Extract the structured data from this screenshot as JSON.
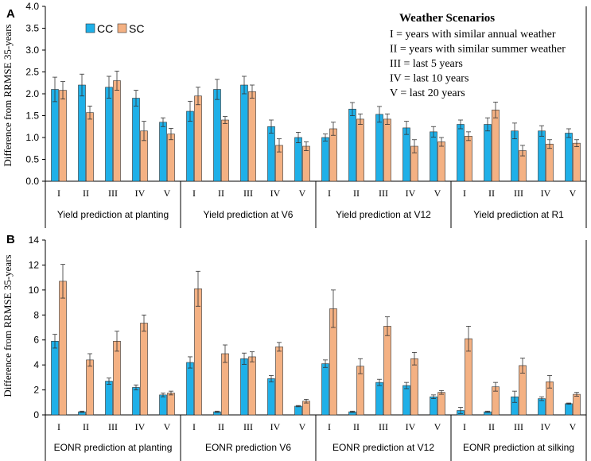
{
  "colors": {
    "cc": "#1FB0E8",
    "sc": "#F4B183",
    "axis": "#000000"
  },
  "legend": {
    "cc": "CC",
    "sc": "SC"
  },
  "weather_box": {
    "title": "Weather Scenarios",
    "lines": [
      "I   = years with similar  annual weather",
      "II =  years with similar  summer weather",
      "III = last 5 years",
      "IV = last 10 years",
      "V  =  last 20 years"
    ]
  },
  "chart_data": [
    {
      "type": "bar",
      "panel_label": "A",
      "ylabel": "Difference from RRMSE 35-years",
      "ylim": [
        0,
        4
      ],
      "yticks": [
        "0.0",
        "0.5",
        "1.0",
        "1.5",
        "2.0",
        "2.5",
        "3.0",
        "3.5",
        "4.0"
      ],
      "ytick_values": [
        0,
        0.5,
        1,
        1.5,
        2,
        2.5,
        3,
        3.5,
        4
      ],
      "scenarios": [
        "I",
        "II",
        "III",
        "IV",
        "V"
      ],
      "groups": [
        "Yield prediction at planting",
        "Yield prediction at V6",
        "Yield prediction at V12",
        "Yield prediction at R1"
      ],
      "series": [
        {
          "name": "CC",
          "values": [
            2.1,
            2.2,
            2.15,
            1.9,
            1.35,
            1.6,
            2.1,
            2.2,
            1.25,
            1.0,
            1.0,
            1.65,
            1.53,
            1.22,
            1.13,
            1.3,
            1.3,
            1.15,
            1.15,
            1.1
          ],
          "errors": [
            0.28,
            0.25,
            0.25,
            0.18,
            0.1,
            0.23,
            0.23,
            0.2,
            0.15,
            0.12,
            0.08,
            0.15,
            0.18,
            0.15,
            0.12,
            0.1,
            0.15,
            0.18,
            0.12,
            0.1
          ]
        },
        {
          "name": "SC",
          "values": [
            2.08,
            1.57,
            2.3,
            1.15,
            1.08,
            1.95,
            1.4,
            2.05,
            0.82,
            0.8,
            1.2,
            1.42,
            1.42,
            0.8,
            0.9,
            1.03,
            1.63,
            0.7,
            0.85,
            0.87
          ],
          "errors": [
            0.2,
            0.15,
            0.22,
            0.22,
            0.13,
            0.2,
            0.08,
            0.15,
            0.15,
            0.1,
            0.15,
            0.12,
            0.12,
            0.15,
            0.1,
            0.1,
            0.18,
            0.12,
            0.1,
            0.08
          ]
        }
      ]
    },
    {
      "type": "bar",
      "panel_label": "B",
      "ylabel": "Difference from RRMSE 35-years",
      "ylim": [
        0,
        14
      ],
      "yticks": [
        "0",
        "2",
        "4",
        "6",
        "8",
        "10",
        "12",
        "14"
      ],
      "ytick_values": [
        0,
        2,
        4,
        6,
        8,
        10,
        12,
        14
      ],
      "scenarios": [
        "I",
        "II",
        "III",
        "IV",
        "V"
      ],
      "groups": [
        "EONR prediction at planting",
        "EONR prediction V6",
        "EONR prediction at V12",
        "EONR prediction at silking"
      ],
      "series": [
        {
          "name": "CC",
          "values": [
            5.9,
            0.25,
            2.7,
            2.2,
            1.6,
            4.2,
            0.25,
            4.5,
            2.9,
            0.7,
            4.1,
            0.25,
            2.6,
            2.35,
            1.45,
            0.35,
            0.25,
            1.45,
            1.3,
            0.9
          ],
          "errors": [
            0.55,
            0.05,
            0.25,
            0.2,
            0.15,
            0.45,
            0.05,
            0.45,
            0.25,
            0.05,
            0.3,
            0.05,
            0.25,
            0.25,
            0.15,
            0.25,
            0.05,
            0.45,
            0.15,
            0.05
          ]
        },
        {
          "name": "SC",
          "values": [
            10.7,
            4.4,
            5.9,
            7.35,
            1.75,
            10.1,
            4.9,
            4.65,
            5.45,
            1.1,
            8.5,
            3.9,
            7.1,
            4.5,
            1.8,
            6.1,
            2.25,
            3.95,
            2.65,
            1.65
          ],
          "errors": [
            1.35,
            0.5,
            0.8,
            0.65,
            0.15,
            1.4,
            0.7,
            0.4,
            0.35,
            0.15,
            1.5,
            0.6,
            0.75,
            0.5,
            0.15,
            1.0,
            0.35,
            0.6,
            0.5,
            0.15
          ]
        }
      ]
    }
  ]
}
